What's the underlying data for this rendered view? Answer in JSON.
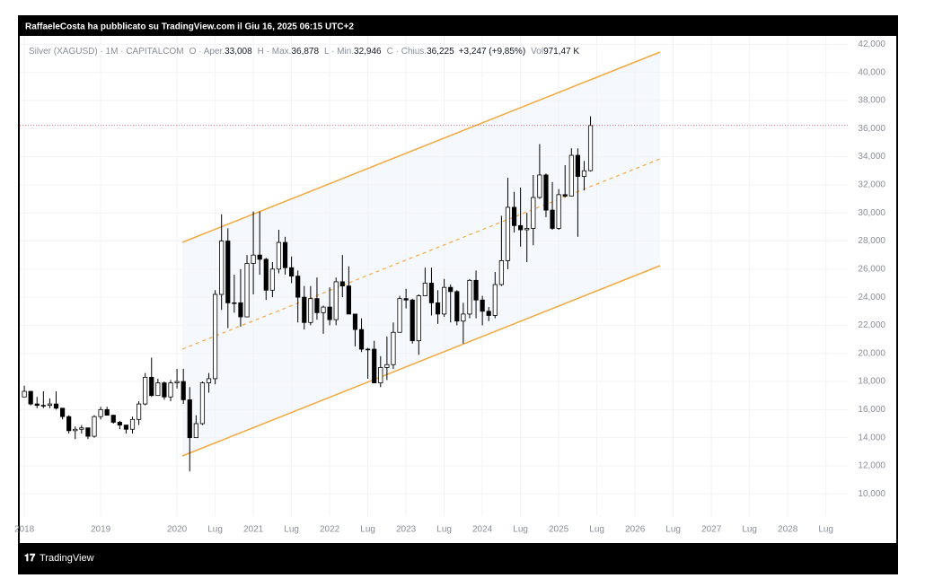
{
  "header": {
    "text": "RaffaeleCosta ha pubblicato su TradingView.com il Giu 16, 2025 06:15 UTC+2"
  },
  "footer": {
    "brand": "TradingView"
  },
  "chart_data": {
    "type": "candlestick",
    "legend": {
      "symbol": "Silver (XAGUSD) · 1M · CAPITALCOM",
      "fields": [
        {
          "label": "O · Aper.",
          "value": "33,008"
        },
        {
          "label": "H · Max.",
          "value": "36,878"
        },
        {
          "label": "L · Min.",
          "value": "32,946"
        },
        {
          "label": "C · Chius.",
          "value": "36,225"
        }
      ],
      "change": "+3,247 (+9,85%)",
      "volume_label": "Vol",
      "volume": "971,47 K"
    },
    "x": [
      "2018-01",
      "2018-02",
      "2018-03",
      "2018-04",
      "2018-05",
      "2018-06",
      "2018-07",
      "2018-08",
      "2018-09",
      "2018-10",
      "2018-11",
      "2018-12",
      "2019-01",
      "2019-02",
      "2019-03",
      "2019-04",
      "2019-05",
      "2019-06",
      "2019-07",
      "2019-08",
      "2019-09",
      "2019-10",
      "2019-11",
      "2019-12",
      "2020-01",
      "2020-02",
      "2020-03",
      "2020-04",
      "2020-05",
      "2020-06",
      "2020-07",
      "2020-08",
      "2020-09",
      "2020-10",
      "2020-11",
      "2020-12",
      "2021-01",
      "2021-02",
      "2021-03",
      "2021-04",
      "2021-05",
      "2021-06",
      "2021-07",
      "2021-08",
      "2021-09",
      "2021-10",
      "2021-11",
      "2021-12",
      "2022-01",
      "2022-02",
      "2022-03",
      "2022-04",
      "2022-05",
      "2022-06",
      "2022-07",
      "2022-08",
      "2022-09",
      "2022-10",
      "2022-11",
      "2022-12",
      "2023-01",
      "2023-02",
      "2023-03",
      "2023-04",
      "2023-05",
      "2023-06",
      "2023-07",
      "2023-08",
      "2023-09",
      "2023-10",
      "2023-11",
      "2023-12",
      "2024-01",
      "2024-02",
      "2024-03",
      "2024-04",
      "2024-05",
      "2024-06",
      "2024-07",
      "2024-08",
      "2024-09",
      "2024-10",
      "2024-11",
      "2024-12",
      "2025-01",
      "2025-02",
      "2025-03",
      "2025-04",
      "2025-05",
      "2025-06"
    ],
    "open": [
      16.9,
      17.3,
      16.4,
      16.3,
      16.3,
      16.4,
      16.1,
      15.5,
      14.5,
      14.6,
      14.7,
      14.1,
      15.5,
      16.0,
      15.6,
      15.1,
      14.9,
      14.6,
      15.3,
      16.4,
      18.3,
      17.0,
      17.9,
      16.9,
      17.9,
      18.0,
      16.7,
      14.0,
      15.0,
      17.9,
      18.2,
      24.2,
      28.0,
      23.6,
      23.6,
      22.6,
      26.4,
      27.0,
      26.7,
      24.5,
      26.0,
      27.9,
      26.1,
      25.5,
      24.0,
      22.2,
      23.9,
      22.9,
      23.3,
      22.4,
      25.1,
      24.8,
      22.8,
      21.7,
      20.3,
      20.3,
      17.9,
      19.0,
      19.2,
      21.5,
      23.9,
      23.8,
      20.9,
      24.1,
      25.0,
      23.6,
      22.8,
      24.7,
      24.4,
      22.3,
      22.8,
      25.2,
      23.8,
      23.0,
      22.7,
      24.9,
      26.6,
      30.4,
      29.1,
      28.8,
      28.9,
      31.1,
      32.7,
      30.2,
      28.9,
      31.3,
      31.2,
      34.1,
      32.6,
      33.008
    ],
    "high": [
      17.7,
      17.3,
      16.9,
      17.3,
      16.8,
      17.3,
      16.1,
      15.6,
      14.8,
      14.9,
      14.7,
      15.6,
      16.2,
      16.2,
      15.6,
      15.2,
      14.9,
      15.5,
      16.6,
      18.6,
      19.7,
      18.2,
      18.0,
      18.1,
      18.9,
      18.9,
      17.6,
      15.6,
      18.0,
      18.6,
      24.5,
      29.9,
      28.9,
      25.6,
      26.0,
      27.0,
      30.1,
      30.1,
      26.8,
      26.5,
      28.8,
      28.3,
      26.9,
      25.9,
      24.8,
      24.8,
      25.4,
      23.4,
      24.7,
      25.4,
      27.0,
      26.2,
      22.8,
      22.5,
      20.4,
      20.9,
      19.8,
      21.2,
      22.2,
      24.1,
      24.6,
      23.9,
      24.2,
      26.1,
      26.1,
      24.5,
      25.3,
      24.9,
      24.5,
      23.6,
      25.3,
      25.9,
      24.1,
      23.3,
      25.8,
      29.8,
      32.5,
      31.5,
      31.8,
      30.0,
      32.7,
      34.9,
      32.8,
      32.2,
      31.7,
      33.4,
      34.6,
      34.6,
      33.7,
      36.878
    ],
    "low": [
      16.9,
      16.3,
      16.1,
      16.1,
      16.1,
      16.0,
      15.3,
      14.3,
      13.9,
      14.3,
      13.9,
      14.0,
      15.3,
      15.6,
      15.0,
      14.6,
      14.3,
      14.3,
      14.9,
      16.3,
      16.9,
      17.0,
      16.7,
      16.6,
      17.5,
      16.4,
      11.6,
      14.0,
      14.9,
      17.2,
      17.8,
      23.1,
      21.8,
      22.9,
      21.9,
      22.6,
      24.2,
      25.6,
      23.8,
      24.0,
      25.7,
      25.6,
      25.0,
      22.2,
      21.7,
      22.0,
      22.4,
      21.4,
      22.0,
      22.0,
      24.0,
      22.8,
      20.5,
      20.1,
      18.2,
      17.9,
      17.6,
      18.1,
      18.9,
      21.5,
      23.2,
      20.7,
      19.9,
      24.1,
      22.7,
      22.1,
      22.6,
      22.2,
      22.0,
      20.7,
      22.5,
      22.5,
      22.0,
      22.3,
      22.5,
      24.8,
      26.0,
      28.6,
      27.6,
      26.5,
      27.7,
      31.0,
      29.7,
      28.8,
      28.8,
      31.1,
      31.2,
      28.3,
      31.6,
      32.946
    ],
    "close": [
      17.3,
      16.4,
      16.3,
      16.3,
      16.4,
      16.1,
      15.5,
      14.5,
      14.6,
      14.7,
      14.1,
      15.5,
      16.0,
      15.6,
      15.1,
      14.9,
      14.6,
      15.3,
      16.4,
      18.3,
      17.0,
      17.9,
      16.9,
      17.9,
      18.0,
      16.7,
      14.0,
      15.0,
      17.9,
      18.2,
      24.2,
      28.0,
      23.6,
      23.6,
      22.6,
      26.4,
      27.0,
      26.7,
      24.5,
      26.0,
      27.9,
      26.1,
      25.5,
      24.0,
      22.2,
      23.9,
      22.9,
      23.3,
      22.4,
      25.1,
      24.8,
      22.8,
      21.7,
      20.3,
      20.3,
      17.9,
      19.0,
      19.2,
      21.5,
      23.9,
      23.8,
      20.9,
      24.1,
      25.0,
      23.6,
      22.8,
      24.7,
      24.4,
      22.3,
      22.8,
      25.2,
      23.8,
      23.0,
      22.7,
      24.9,
      26.6,
      30.4,
      29.1,
      28.8,
      28.9,
      31.1,
      32.7,
      30.2,
      28.9,
      31.3,
      31.2,
      34.1,
      32.6,
      33.0,
      36.225
    ],
    "up_color": "#ffffff",
    "down_color": "#000000",
    "wick_color": "#000000",
    "last_price_color": "#f23645",
    "xlim": [
      "2017-12",
      "2028-11"
    ],
    "xticks": [
      {
        "value": "2018-01",
        "label": "2018"
      },
      {
        "value": "2019-01",
        "label": "2019"
      },
      {
        "value": "2020-01",
        "label": "2020"
      },
      {
        "value": "2020-07",
        "label": "Lug"
      },
      {
        "value": "2021-01",
        "label": "2021"
      },
      {
        "value": "2021-07",
        "label": "Lug"
      },
      {
        "value": "2022-01",
        "label": "2022"
      },
      {
        "value": "2022-07",
        "label": "Lug"
      },
      {
        "value": "2023-01",
        "label": "2023"
      },
      {
        "value": "2023-07",
        "label": "Lug"
      },
      {
        "value": "2024-01",
        "label": "2024"
      },
      {
        "value": "2024-07",
        "label": "Lug"
      },
      {
        "value": "2025-01",
        "label": "2025"
      },
      {
        "value": "2025-07",
        "label": "Lug"
      },
      {
        "value": "2026-01",
        "label": "2026"
      },
      {
        "value": "2026-07",
        "label": "Lug"
      },
      {
        "value": "2027-01",
        "label": "2027"
      },
      {
        "value": "2027-07",
        "label": "Lug"
      },
      {
        "value": "2028-01",
        "label": "2028"
      },
      {
        "value": "2028-07",
        "label": "Lug"
      }
    ],
    "ylim": [
      8.1,
      42.6
    ],
    "yticks": [
      {
        "value": 10,
        "label": "10,000"
      },
      {
        "value": 12,
        "label": "12,000"
      },
      {
        "value": 14,
        "label": "14,000"
      },
      {
        "value": 16,
        "label": "16,000"
      },
      {
        "value": 18,
        "label": "18,000"
      },
      {
        "value": 20,
        "label": "20,000"
      },
      {
        "value": 22,
        "label": "22,000"
      },
      {
        "value": 24,
        "label": "24,000"
      },
      {
        "value": 26,
        "label": "26,000"
      },
      {
        "value": 28,
        "label": "28,000"
      },
      {
        "value": 30,
        "label": "30,000"
      },
      {
        "value": 32,
        "label": "32,000"
      },
      {
        "value": 34,
        "label": "34,000"
      },
      {
        "value": 36,
        "label": "36,000"
      },
      {
        "value": 38,
        "label": "38,000"
      },
      {
        "value": 40,
        "label": "40,000"
      },
      {
        "value": 42,
        "label": "42,000"
      }
    ],
    "grid": true
  }
}
